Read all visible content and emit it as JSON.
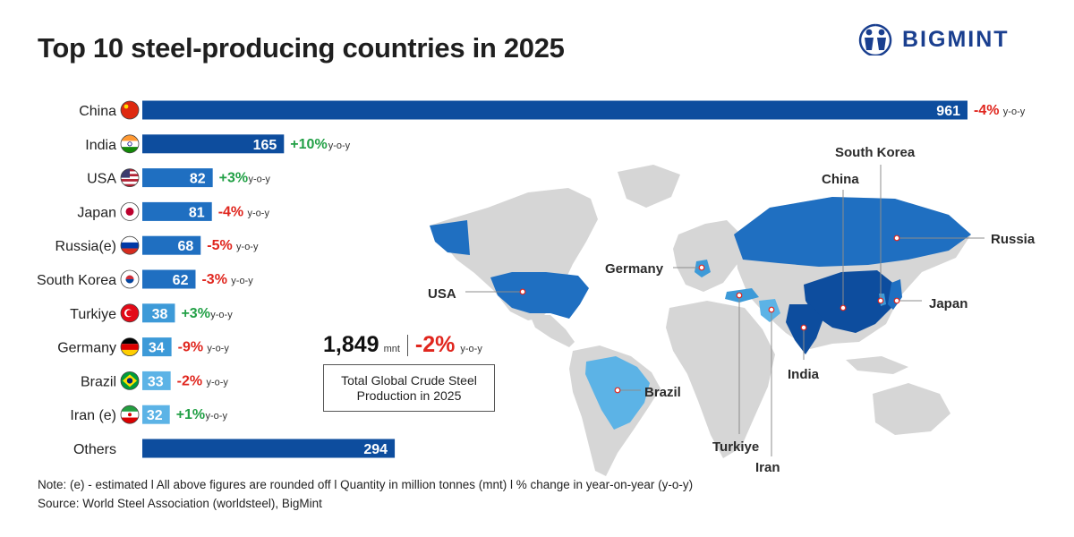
{
  "title": "Top 10 steel-producing countries in 2025",
  "brand": {
    "name": "BIGMINT"
  },
  "colors": {
    "dark": "#0d4d9e",
    "mid": "#1f6fc1",
    "light": "#3d9ad8",
    "lighter": "#5cb3e6",
    "positive": "#22a046",
    "negative": "#e0261e",
    "land": "#d6d6d6"
  },
  "total": {
    "value": "1,849",
    "unit": "mnt",
    "change": "-2%",
    "yoy": "y-o-y",
    "label_line1": "Total Global Crude Steel",
    "label_line2": "Production in 2025"
  },
  "note": "Note: (e) - estimated  l  All above figures are rounded off   l  Quantity in million tonnes (mnt)  l  % change in year-on-year (y-o-y)",
  "source": "Source: World Steel Association (worldsteel), BigMint",
  "chart_data": {
    "type": "bar",
    "orientation": "horizontal",
    "title": "Top 10 steel-producing countries in 2025",
    "unit": "mnt",
    "categories": [
      "China",
      "India",
      "USA",
      "Japan",
      "Russia(e)",
      "South Korea",
      "Turkiye",
      "Germany",
      "Brazil",
      "Iran (e)",
      "Others"
    ],
    "values": [
      961,
      165,
      82,
      81,
      68,
      62,
      38,
      34,
      33,
      32,
      294
    ],
    "changes": [
      "-4%",
      "+10%",
      "+3%",
      "-4%",
      "-5%",
      "-3%",
      "+3%",
      "-9%",
      "-2%",
      "+1%",
      ""
    ],
    "change_suffix": "y-o-y",
    "flags": [
      "china-flag-icon",
      "india-flag-icon",
      "usa-flag-icon",
      "japan-flag-icon",
      "russia-flag-icon",
      "south-korea-flag-icon",
      "turkiye-flag-icon",
      "germany-flag-icon",
      "brazil-flag-icon",
      "iran-flag-icon",
      ""
    ],
    "xlim": [
      0,
      961
    ]
  },
  "map": {
    "labels": [
      "South Korea",
      "China",
      "Russia",
      "Germany",
      "USA",
      "Japan",
      "India",
      "Brazil",
      "Turkiye",
      "Iran"
    ]
  }
}
